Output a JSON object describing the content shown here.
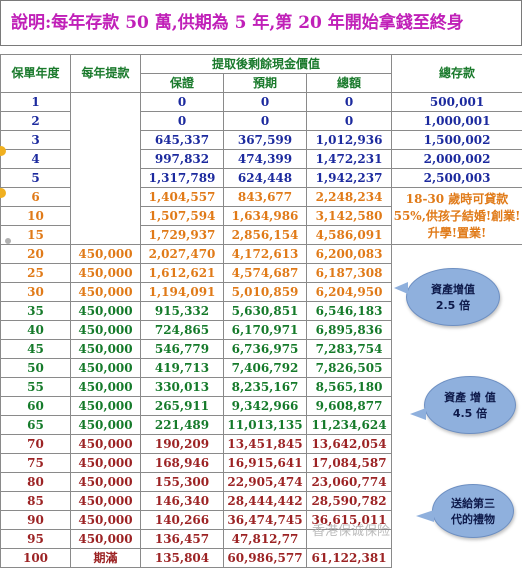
{
  "title": "說明:每年存款 50 萬,供期為 5 年,第 20 年開始拿錢至終身",
  "headers": {
    "year": "保單年度",
    "withdraw": "每年提款",
    "remaining": "提取後剩餘現金價值",
    "guaranteed": "保證",
    "projected": "預期",
    "total": "總額",
    "total_deposit": "總存款"
  },
  "rows": [
    {
      "year": "1",
      "withdraw": "",
      "g": "0",
      "p": "0",
      "t": "0",
      "deposit": "500,001",
      "color": "blue"
    },
    {
      "year": "2",
      "withdraw": "",
      "g": "0",
      "p": "0",
      "t": "0",
      "deposit": "1,000,001",
      "color": "blue"
    },
    {
      "year": "3",
      "withdraw": "",
      "g": "645,337",
      "p": "367,599",
      "t": "1,012,936",
      "deposit": "1,500,002",
      "color": "blue"
    },
    {
      "year": "4",
      "withdraw": "",
      "g": "997,832",
      "p": "474,399",
      "t": "1,472,231",
      "deposit": "2,000,002",
      "color": "blue"
    },
    {
      "year": "5",
      "withdraw": "",
      "g": "1,317,789",
      "p": "624,448",
      "t": "1,942,237",
      "deposit": "2,500,003",
      "color": "blue"
    },
    {
      "year": "6",
      "withdraw": "",
      "g": "1,404,557",
      "p": "843,677",
      "t": "2,248,234",
      "deposit": "",
      "color": "orange"
    },
    {
      "year": "10",
      "withdraw": "",
      "g": "1,507,594",
      "p": "1,634,986",
      "t": "3,142,580",
      "deposit": "",
      "color": "orange"
    },
    {
      "year": "15",
      "withdraw": "",
      "g": "1,729,937",
      "p": "2,856,154",
      "t": "4,586,091",
      "deposit": "",
      "color": "orange"
    },
    {
      "year": "20",
      "withdraw": "450,000",
      "g": "2,027,470",
      "p": "4,172,613",
      "t": "6,200,083",
      "deposit": "",
      "color": "orange"
    },
    {
      "year": "25",
      "withdraw": "450,000",
      "g": "1,612,621",
      "p": "4,574,687",
      "t": "6,187,308",
      "deposit": "",
      "color": "orange"
    },
    {
      "year": "30",
      "withdraw": "450,000",
      "g": "1,194,091",
      "p": "5,010,859",
      "t": "6,204,950",
      "deposit": "",
      "color": "orange"
    },
    {
      "year": "35",
      "withdraw": "450,000",
      "g": "915,332",
      "p": "5,630,851",
      "t": "6,546,183",
      "deposit": "",
      "color": "green"
    },
    {
      "year": "40",
      "withdraw": "450,000",
      "g": "724,865",
      "p": "6,170,971",
      "t": "6,895,836",
      "deposit": "",
      "color": "green"
    },
    {
      "year": "45",
      "withdraw": "450,000",
      "g": "546,779",
      "p": "6,736,975",
      "t": "7,283,754",
      "deposit": "",
      "color": "green"
    },
    {
      "year": "50",
      "withdraw": "450,000",
      "g": "419,713",
      "p": "7,406,792",
      "t": "7,826,505",
      "deposit": "",
      "color": "green"
    },
    {
      "year": "55",
      "withdraw": "450,000",
      "g": "330,013",
      "p": "8,235,167",
      "t": "8,565,180",
      "deposit": "",
      "color": "green"
    },
    {
      "year": "60",
      "withdraw": "450,000",
      "g": "265,911",
      "p": "9,342,966",
      "t": "9,608,877",
      "deposit": "",
      "color": "green"
    },
    {
      "year": "65",
      "withdraw": "450,000",
      "g": "221,489",
      "p": "11,013,135",
      "t": "11,234,624",
      "deposit": "",
      "color": "green"
    },
    {
      "year": "70",
      "withdraw": "450,000",
      "g": "190,209",
      "p": "13,451,845",
      "t": "13,642,054",
      "deposit": "",
      "color": "red"
    },
    {
      "year": "75",
      "withdraw": "450,000",
      "g": "168,946",
      "p": "16,915,641",
      "t": "17,084,587",
      "deposit": "",
      "color": "red"
    },
    {
      "year": "80",
      "withdraw": "450,000",
      "g": "155,300",
      "p": "22,905,474",
      "t": "23,060,774",
      "deposit": "",
      "color": "red"
    },
    {
      "year": "85",
      "withdraw": "450,000",
      "g": "146,340",
      "p": "28,444,442",
      "t": "28,590,782",
      "deposit": "",
      "color": "red"
    },
    {
      "year": "90",
      "withdraw": "450,000",
      "g": "140,266",
      "p": "36,474,745",
      "t": "36,615,011",
      "deposit": "",
      "color": "red"
    },
    {
      "year": "95",
      "withdraw": "450,000",
      "g": "136,457",
      "p": "47,812,77",
      "t": "",
      "deposit": "",
      "color": "red"
    },
    {
      "year": "100",
      "withdraw": "期滿",
      "g": "135,804",
      "p": "60,986,577",
      "t": "61,122,381",
      "deposit": "",
      "color": "red"
    }
  ],
  "side_note": "18-30 歲時可貸款 55%,供孩子結婚!創業!升學!置業!",
  "callouts": [
    {
      "line1": "資產增值",
      "line2": "2.5 倍"
    },
    {
      "line1": "資產 增 值",
      "line2": "4.5 倍"
    },
    {
      "line1": "送給第三",
      "line2": "代的禮物"
    }
  ],
  "watermark": "香港保诚保险",
  "colors": {
    "title": "#c020b8",
    "header": "#1a7a2c",
    "blue": "#1c2a9e",
    "orange": "#e07a18",
    "green": "#157a2a",
    "red": "#9c2324",
    "callout": "#8fb0dd"
  }
}
